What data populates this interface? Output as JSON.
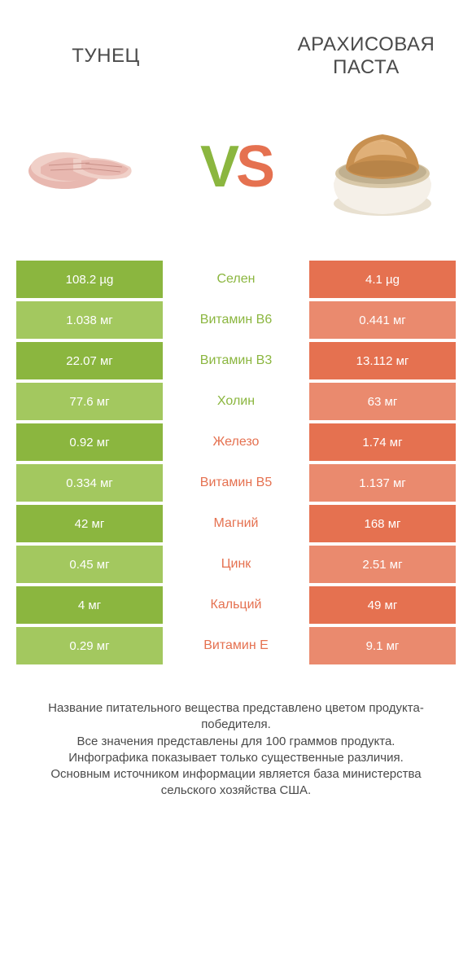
{
  "header": {
    "left_title": "ТУНЕЦ",
    "right_title": "АРАХИСОВАЯ ПАСТА"
  },
  "vs": {
    "v": "V",
    "s": "S"
  },
  "colors": {
    "left_primary": "#8bb63f",
    "left_light": "#a3c85f",
    "right_primary": "#e57150",
    "right_light": "#ea8a6e",
    "text_left_win": "#8bb63f",
    "text_right_win": "#e57150",
    "background": "#ffffff",
    "body_text": "#4a4a4a"
  },
  "table": {
    "type": "comparison-table",
    "columns": [
      "left_value",
      "nutrient",
      "right_value"
    ],
    "rows": [
      {
        "left": "108.2 µg",
        "mid": "Селен",
        "right": "4.1 µg",
        "winner": "left"
      },
      {
        "left": "1.038 мг",
        "mid": "Витамин B6",
        "right": "0.441 мг",
        "winner": "left"
      },
      {
        "left": "22.07 мг",
        "mid": "Витамин B3",
        "right": "13.112 мг",
        "winner": "left"
      },
      {
        "left": "77.6 мг",
        "mid": "Холин",
        "right": "63 мг",
        "winner": "left"
      },
      {
        "left": "0.92 мг",
        "mid": "Железо",
        "right": "1.74 мг",
        "winner": "right"
      },
      {
        "left": "0.334 мг",
        "mid": "Витамин B5",
        "right": "1.137 мг",
        "winner": "right"
      },
      {
        "left": "42 мг",
        "mid": "Магний",
        "right": "168 мг",
        "winner": "right"
      },
      {
        "left": "0.45 мг",
        "mid": "Цинк",
        "right": "2.51 мг",
        "winner": "right"
      },
      {
        "left": "4 мг",
        "mid": "Кальций",
        "right": "49 мг",
        "winner": "right"
      },
      {
        "left": "0.29 мг",
        "mid": "Витамин E",
        "right": "9.1 мг",
        "winner": "right"
      }
    ]
  },
  "footer": {
    "line1": "Название питательного вещества представлено цветом продукта-победителя.",
    "line2": "Все значения представлены для 100 граммов продукта.",
    "line3": "Инфографика показывает только существенные различия.",
    "line4": "Основным источником информации является база министерства сельского хозяйства США."
  },
  "images": {
    "tuna": {
      "body_color": "#e8b8b0",
      "highlight": "#f0d0c8",
      "dark": "#c89088"
    },
    "peanut_butter": {
      "bowl_color": "#f5f0e8",
      "bowl_rim": "#d8c8a8",
      "bowl_shadow": "#c0b090",
      "paste_color": "#c89050",
      "paste_highlight": "#e0b078",
      "paste_dark": "#a87840"
    }
  }
}
